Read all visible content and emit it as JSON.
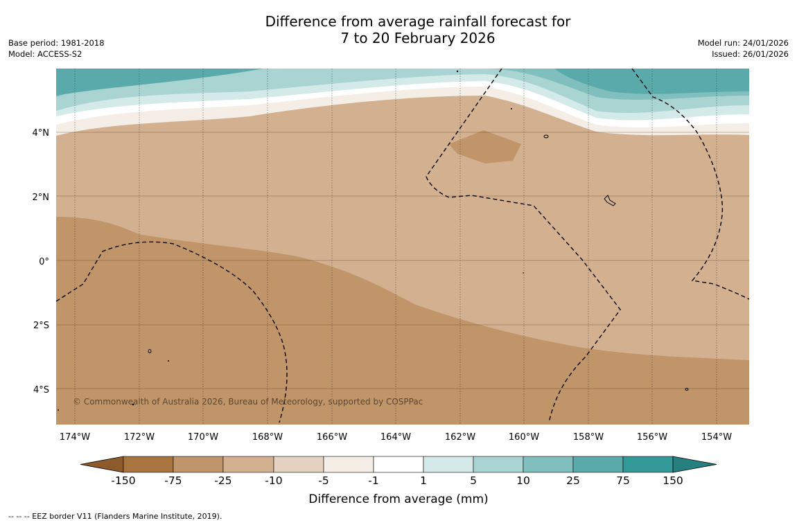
{
  "title": {
    "line1": "Difference from average rainfall forecast for",
    "line2": "7 to 20 February 2026"
  },
  "meta_left": {
    "base_period": "Base period: 1981-2018",
    "model": "Model: ACCESS-S2"
  },
  "meta_right": {
    "model_run": "Model run: 24/01/2026",
    "issued": "Issued: 26/01/2026"
  },
  "map": {
    "lat_labels": [
      "4°N",
      "2°N",
      "0°",
      "2°S",
      "4°S"
    ],
    "lon_labels": [
      "174°W",
      "172°W",
      "170°W",
      "168°W",
      "166°W",
      "164°W",
      "162°W",
      "160°W",
      "158°W",
      "156°W",
      "154°W"
    ],
    "copyright": "© Commonwealth of Australia 2026, Bureau of Meteorology, supported by COSPPac"
  },
  "legend": {
    "ticks": [
      "-150",
      "-75",
      "-25",
      "-10",
      "-5",
      "-1",
      "1",
      "5",
      "10",
      "25",
      "75",
      "150"
    ],
    "colors": [
      "#8c5a2b",
      "#a87440",
      "#c0956a",
      "#d2b090",
      "#e5d2c0",
      "#f4eee7",
      "#ffffff",
      "#d3eae8",
      "#aad4d2",
      "#80bfbd",
      "#5aaaab",
      "#339a99",
      "#25807f"
    ],
    "label": "Difference from average (mm)"
  },
  "footer": "--  --  -- EEZ border V11 (Flanders Marine Institute, 2019)."
}
